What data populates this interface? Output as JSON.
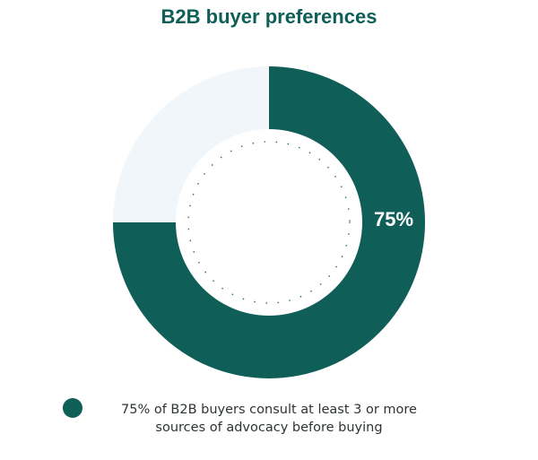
{
  "title": "B2B buyer preferences",
  "chart_data": {
    "type": "pie",
    "title": "B2B buyer preferences",
    "slices": [
      {
        "label": "75% of B2B buyers consult at least 3 or more sources of advocacy before buying",
        "value": 75,
        "color": "#0f5e57",
        "data_label": "75%"
      },
      {
        "label": "",
        "value": 25,
        "color": "#f0f6f9",
        "data_label": ""
      }
    ],
    "legend_position": "bottom"
  },
  "legend": {
    "text": "75% of B2B buyers consult at least 3 or more sources of advocacy before buying",
    "color": "#0f5e57"
  }
}
